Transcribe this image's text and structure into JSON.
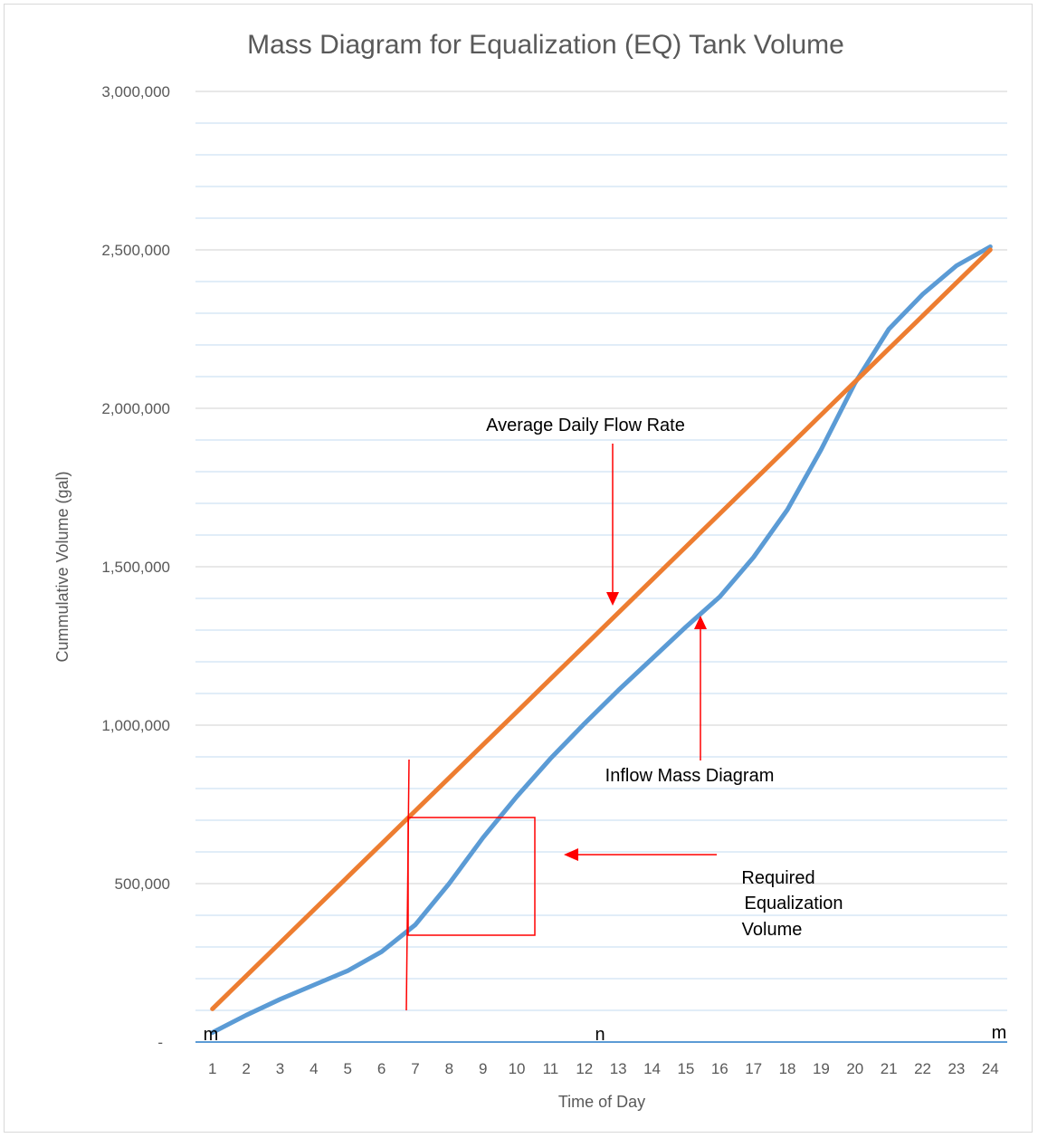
{
  "colors": {
    "inflow": "#5b9bd5",
    "average": "#ed7d31",
    "annotation": "#ff0000",
    "grid_major": "#d9d9d9",
    "grid_minor": "#cfe2f3",
    "axis": "#5b9bd5"
  },
  "chart_data": {
    "type": "line",
    "title": "Mass Diagram for Equalization (EQ) Tank Volume",
    "xlabel": "Time of Day",
    "ylabel": "Cummulative Volume (gal)",
    "x": [
      1,
      2,
      3,
      4,
      5,
      6,
      7,
      8,
      9,
      10,
      11,
      12,
      13,
      14,
      15,
      16,
      17,
      18,
      19,
      20,
      21,
      22,
      23,
      24
    ],
    "ylim": [
      0,
      3000000
    ],
    "y_ticks": [
      {
        "value": 0,
        "label": "-"
      },
      {
        "value": 500000,
        "label": "500,000"
      },
      {
        "value": 1000000,
        "label": "1,000,000"
      },
      {
        "value": 1500000,
        "label": "1,500,000"
      },
      {
        "value": 2000000,
        "label": "2,000,000"
      },
      {
        "value": 2500000,
        "label": "2,500,000"
      },
      {
        "value": 3000000,
        "label": "3,000,000"
      }
    ],
    "minor_grid_step": 100000,
    "series": [
      {
        "key": "inflow",
        "values": [
          30000,
          85000,
          135000,
          180000,
          225000,
          285000,
          370000,
          500000,
          645000,
          775000,
          895000,
          1005000,
          1110000,
          1210000,
          1310000,
          1405000,
          1530000,
          1680000,
          1870000,
          2080000,
          2250000,
          2360000,
          2450000,
          2510000
        ]
      },
      {
        "key": "average",
        "values": [
          104583,
          208750,
          312917,
          417083,
          521250,
          625417,
          729583,
          833750,
          937917,
          1042083,
          1146250,
          1250417,
          1354583,
          1458750,
          1562917,
          1667083,
          1771250,
          1875417,
          1979583,
          2083750,
          2187917,
          2292083,
          2396250,
          2500417
        ]
      }
    ],
    "annotations": [
      {
        "key": "avg_label",
        "text": "Average Daily Flow Rate"
      },
      {
        "key": "inflow_label",
        "text": "Inflow Mass Diagram"
      },
      {
        "key": "eq_line1",
        "text": "Required"
      },
      {
        "key": "eq_line2",
        "text": "Equalization"
      },
      {
        "key": "eq_line3",
        "text": "Volume"
      }
    ],
    "axis_marks": {
      "m_left": "m",
      "n": "n",
      "m_right": "m"
    }
  }
}
